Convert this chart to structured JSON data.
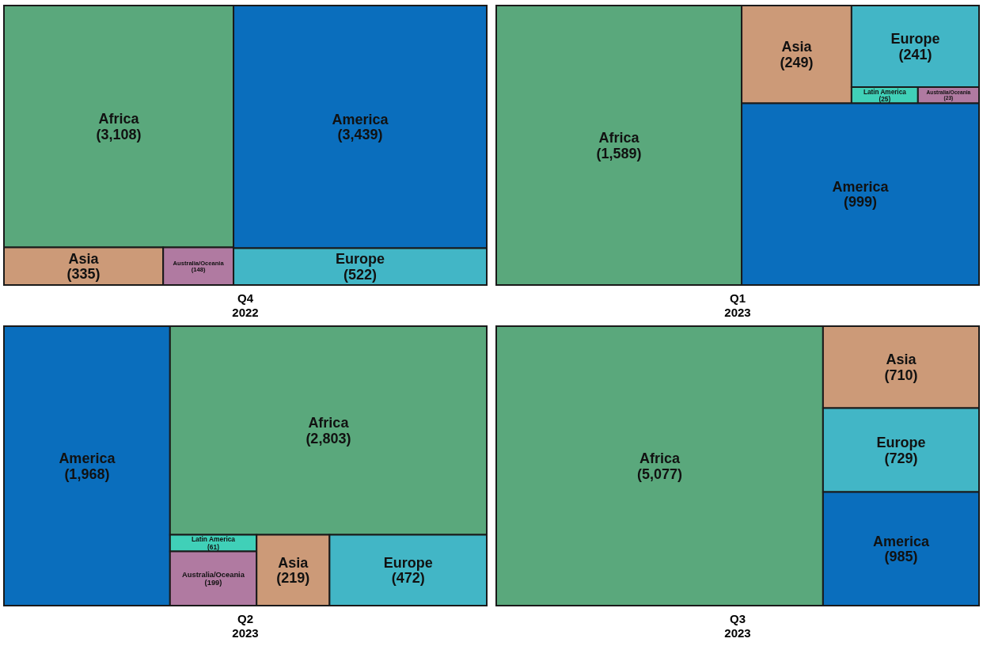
{
  "chart_data": [
    {
      "type": "other",
      "title": "Q4",
      "subtitle": "2022",
      "categories": [
        "Africa",
        "Asia",
        "Australia/Oceania",
        "America",
        "Europe"
      ],
      "values": [
        3108,
        335,
        148,
        3439,
        522
      ],
      "value_labels": [
        "(3,108)",
        "(335)",
        "(148)",
        "(3,439)",
        "(522)"
      ],
      "colors": [
        "#5aa87c",
        "#cc9a78",
        "#b07aa1",
        "#0a6ebd",
        "#42b6c6"
      ]
    },
    {
      "type": "other",
      "title": "Q1",
      "subtitle": "2023",
      "categories": [
        "Africa",
        "Asia",
        "Europe",
        "Latin America",
        "Australia/Oceania",
        "America"
      ],
      "values": [
        1589,
        249,
        241,
        25,
        23,
        999
      ],
      "value_labels": [
        "(1,589)",
        "(249)",
        "(241)",
        "(25)",
        "(23)",
        "(999)"
      ],
      "colors": [
        "#5aa87c",
        "#cc9a78",
        "#42b6c6",
        "#40d0b8",
        "#b07aa1",
        "#0a6ebd"
      ]
    },
    {
      "type": "other",
      "title": "Q2",
      "subtitle": "2023",
      "categories": [
        "America",
        "Africa",
        "Latin America",
        "Australia/Oceania",
        "Asia",
        "Europe"
      ],
      "values": [
        1968,
        2803,
        61,
        199,
        219,
        472
      ],
      "value_labels": [
        "(1,968)",
        "(2,803)",
        "(61)",
        "(199)",
        "(219)",
        "(472)"
      ],
      "colors": [
        "#0a6ebd",
        "#5aa87c",
        "#40d0b8",
        "#b07aa1",
        "#cc9a78",
        "#42b6c6"
      ]
    },
    {
      "type": "other",
      "title": "Q3",
      "subtitle": "2023",
      "categories": [
        "Africa",
        "Asia",
        "Europe",
        "America"
      ],
      "values": [
        5077,
        710,
        729,
        985
      ],
      "value_labels": [
        "(5,077)",
        "(710)",
        "(729)",
        "(985)"
      ],
      "colors": [
        "#5aa87c",
        "#cc9a78",
        "#42b6c6",
        "#0a6ebd"
      ]
    }
  ]
}
